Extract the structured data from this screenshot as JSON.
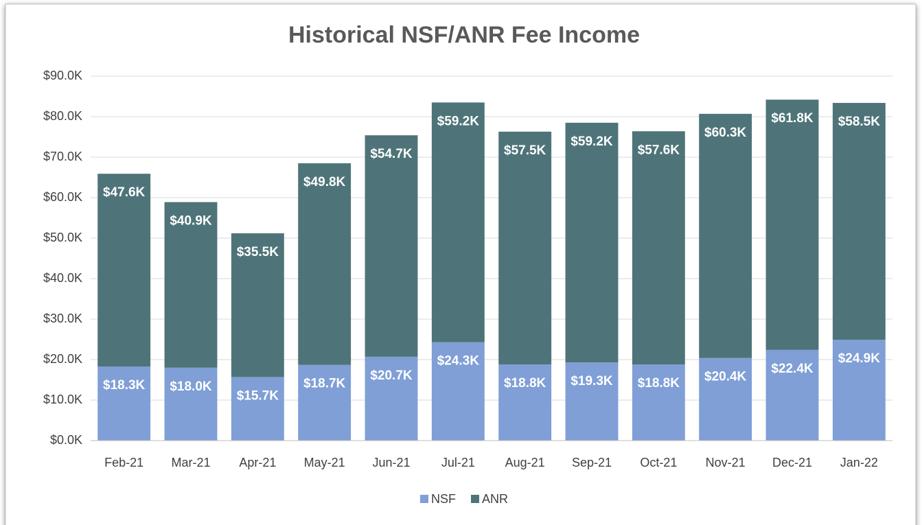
{
  "chart_data": {
    "type": "bar",
    "stacked": true,
    "title": "Historical NSF/ANR Fee Income",
    "categories": [
      "Feb-21",
      "Mar-21",
      "Apr-21",
      "May-21",
      "Jun-21",
      "Jul-21",
      "Aug-21",
      "Sep-21",
      "Oct-21",
      "Nov-21",
      "Dec-21",
      "Jan-22"
    ],
    "series": [
      {
        "name": "NSF",
        "color": "#7f9fd6",
        "values": [
          18300,
          18000,
          15700,
          18700,
          20700,
          24300,
          18800,
          19300,
          18800,
          20400,
          22400,
          24900
        ],
        "value_labels": [
          "$18.3K",
          "$18.0K",
          "$15.7K",
          "$18.7K",
          "$20.7K",
          "$24.3K",
          "$18.8K",
          "$19.3K",
          "$18.8K",
          "$20.4K",
          "$22.4K",
          "$24.9K"
        ]
      },
      {
        "name": "ANR",
        "color": "#4e7479",
        "values": [
          47600,
          40900,
          35500,
          49800,
          54700,
          59200,
          57500,
          59200,
          57600,
          60300,
          61800,
          58500
        ],
        "value_labels": [
          "$47.6K",
          "$40.9K",
          "$35.5K",
          "$49.8K",
          "$54.7K",
          "$59.2K",
          "$57.5K",
          "$59.2K",
          "$57.6K",
          "$60.3K",
          "$61.8K",
          "$58.5K"
        ]
      }
    ],
    "ylim": [
      0,
      90000
    ],
    "yticks": [
      {
        "value": 0,
        "label": "$0.0K"
      },
      {
        "value": 10000,
        "label": "$10.0K"
      },
      {
        "value": 20000,
        "label": "$20.0K"
      },
      {
        "value": 30000,
        "label": "$30.0K"
      },
      {
        "value": 40000,
        "label": "$40.0K"
      },
      {
        "value": 50000,
        "label": "$50.0K"
      },
      {
        "value": 60000,
        "label": "$60.0K"
      },
      {
        "value": 70000,
        "label": "$70.0K"
      },
      {
        "value": 80000,
        "label": "$80.0K"
      },
      {
        "value": 90000,
        "label": "$90.0K"
      }
    ],
    "grid": true,
    "legend": "bottom"
  }
}
